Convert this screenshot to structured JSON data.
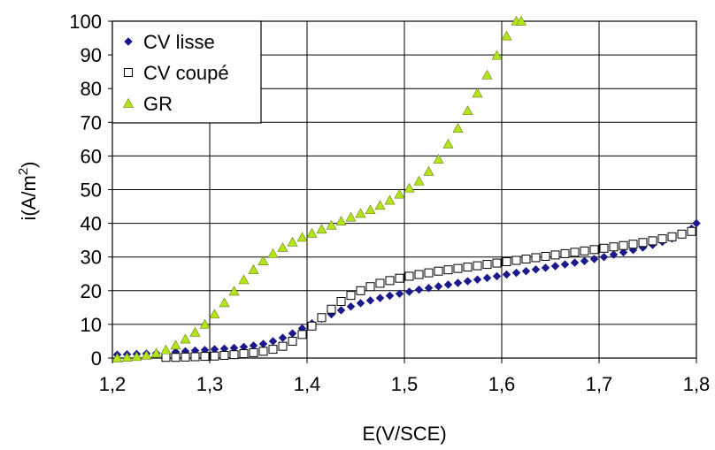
{
  "chart_data": {
    "type": "scatter",
    "xlabel": "E(V/SCE)",
    "ylabel": "i(A/m",
    "ylabel_superscript": "2",
    "ylabel_suffix": ")",
    "xlim": [
      1.2,
      1.8
    ],
    "ylim": [
      0,
      100
    ],
    "x_ticks": [
      1.2,
      1.3,
      1.4,
      1.5,
      1.6,
      1.7,
      1.8
    ],
    "x_tick_labels": [
      "1,2",
      "1,3",
      "1,4",
      "1,5",
      "1,6",
      "1,7",
      "1,8"
    ],
    "y_ticks": [
      0,
      10,
      20,
      30,
      40,
      50,
      60,
      70,
      80,
      90,
      100
    ],
    "y_tick_labels": [
      "0",
      "10",
      "20",
      "30",
      "40",
      "50",
      "60",
      "70",
      "80",
      "90",
      "100"
    ],
    "grid": true,
    "legend_position": "top-left",
    "series": [
      {
        "name": "CV lisse",
        "marker": "diamond",
        "color": "#1a1a8c",
        "x": [
          1.205,
          1.215,
          1.225,
          1.235,
          1.245,
          1.255,
          1.265,
          1.275,
          1.285,
          1.295,
          1.305,
          1.315,
          1.325,
          1.335,
          1.345,
          1.355,
          1.365,
          1.375,
          1.385,
          1.395,
          1.405,
          1.415,
          1.425,
          1.435,
          1.445,
          1.455,
          1.465,
          1.475,
          1.485,
          1.495,
          1.505,
          1.515,
          1.525,
          1.535,
          1.545,
          1.555,
          1.565,
          1.575,
          1.585,
          1.595,
          1.605,
          1.615,
          1.625,
          1.635,
          1.645,
          1.655,
          1.665,
          1.675,
          1.685,
          1.695,
          1.705,
          1.715,
          1.725,
          1.735,
          1.745,
          1.755,
          1.765,
          1.775,
          1.785,
          1.795,
          1.8
        ],
        "y": [
          1.0,
          1.1,
          1.2,
          1.3,
          1.4,
          1.6,
          1.8,
          2.0,
          2.2,
          2.4,
          2.6,
          2.8,
          3.0,
          3.3,
          3.7,
          4.2,
          5.0,
          6.0,
          7.3,
          8.8,
          10.3,
          11.7,
          13.0,
          14.2,
          15.3,
          16.3,
          17.1,
          17.8,
          18.5,
          19.1,
          19.7,
          20.3,
          20.8,
          21.3,
          21.8,
          22.3,
          22.8,
          23.3,
          23.8,
          24.3,
          24.8,
          25.3,
          25.8,
          26.3,
          26.8,
          27.3,
          27.8,
          28.3,
          28.8,
          29.4,
          30.0,
          30.7,
          31.4,
          32.1,
          32.8,
          33.6,
          34.5,
          35.5,
          36.7,
          38.4,
          40.0
        ]
      },
      {
        "name": "CV coupé",
        "marker": "square-open",
        "color": "#000000",
        "x": [
          1.255,
          1.265,
          1.275,
          1.285,
          1.295,
          1.305,
          1.315,
          1.325,
          1.335,
          1.345,
          1.355,
          1.365,
          1.375,
          1.385,
          1.395,
          1.405,
          1.415,
          1.425,
          1.435,
          1.445,
          1.455,
          1.465,
          1.475,
          1.485,
          1.495,
          1.505,
          1.515,
          1.525,
          1.535,
          1.545,
          1.555,
          1.565,
          1.575,
          1.585,
          1.595,
          1.605,
          1.615,
          1.625,
          1.635,
          1.645,
          1.655,
          1.665,
          1.675,
          1.685,
          1.695,
          1.705,
          1.715,
          1.725,
          1.735,
          1.745,
          1.755,
          1.765,
          1.775,
          1.785,
          1.795
        ],
        "y": [
          0.2,
          0.2,
          0.3,
          0.4,
          0.5,
          0.6,
          0.8,
          1.0,
          1.3,
          1.6,
          2.0,
          2.6,
          3.5,
          5.0,
          7.0,
          9.5,
          12.0,
          14.5,
          16.8,
          18.6,
          20.0,
          21.2,
          22.2,
          23.0,
          23.7,
          24.3,
          24.8,
          25.3,
          25.8,
          26.2,
          26.6,
          27.0,
          27.4,
          27.8,
          28.2,
          28.6,
          29.0,
          29.4,
          29.8,
          30.2,
          30.6,
          31.0,
          31.4,
          31.8,
          32.2,
          32.6,
          33.0,
          33.4,
          33.8,
          34.3,
          34.8,
          35.4,
          36.0,
          36.8,
          37.6
        ]
      },
      {
        "name": "GR",
        "marker": "triangle",
        "color": "#b3e619",
        "x": [
          1.205,
          1.215,
          1.225,
          1.235,
          1.245,
          1.255,
          1.265,
          1.275,
          1.285,
          1.295,
          1.305,
          1.315,
          1.325,
          1.335,
          1.345,
          1.355,
          1.365,
          1.375,
          1.385,
          1.395,
          1.405,
          1.415,
          1.425,
          1.435,
          1.445,
          1.455,
          1.465,
          1.475,
          1.485,
          1.495,
          1.505,
          1.515,
          1.525,
          1.535,
          1.545,
          1.555,
          1.565,
          1.575,
          1.585,
          1.595,
          1.605,
          1.615,
          1.62
        ],
        "y": [
          0.0,
          0.2,
          0.4,
          0.8,
          1.4,
          2.4,
          3.8,
          5.6,
          7.6,
          10.0,
          13.0,
          16.4,
          19.8,
          23.2,
          26.2,
          28.8,
          31.0,
          32.8,
          34.4,
          35.8,
          37.0,
          38.2,
          39.4,
          40.6,
          41.8,
          42.9,
          44.0,
          45.3,
          46.8,
          48.6,
          50.4,
          52.5,
          55.4,
          59.0,
          63.5,
          68.2,
          73.4,
          78.6,
          84.0,
          89.8,
          95.6,
          100.0,
          100.0
        ]
      }
    ]
  }
}
